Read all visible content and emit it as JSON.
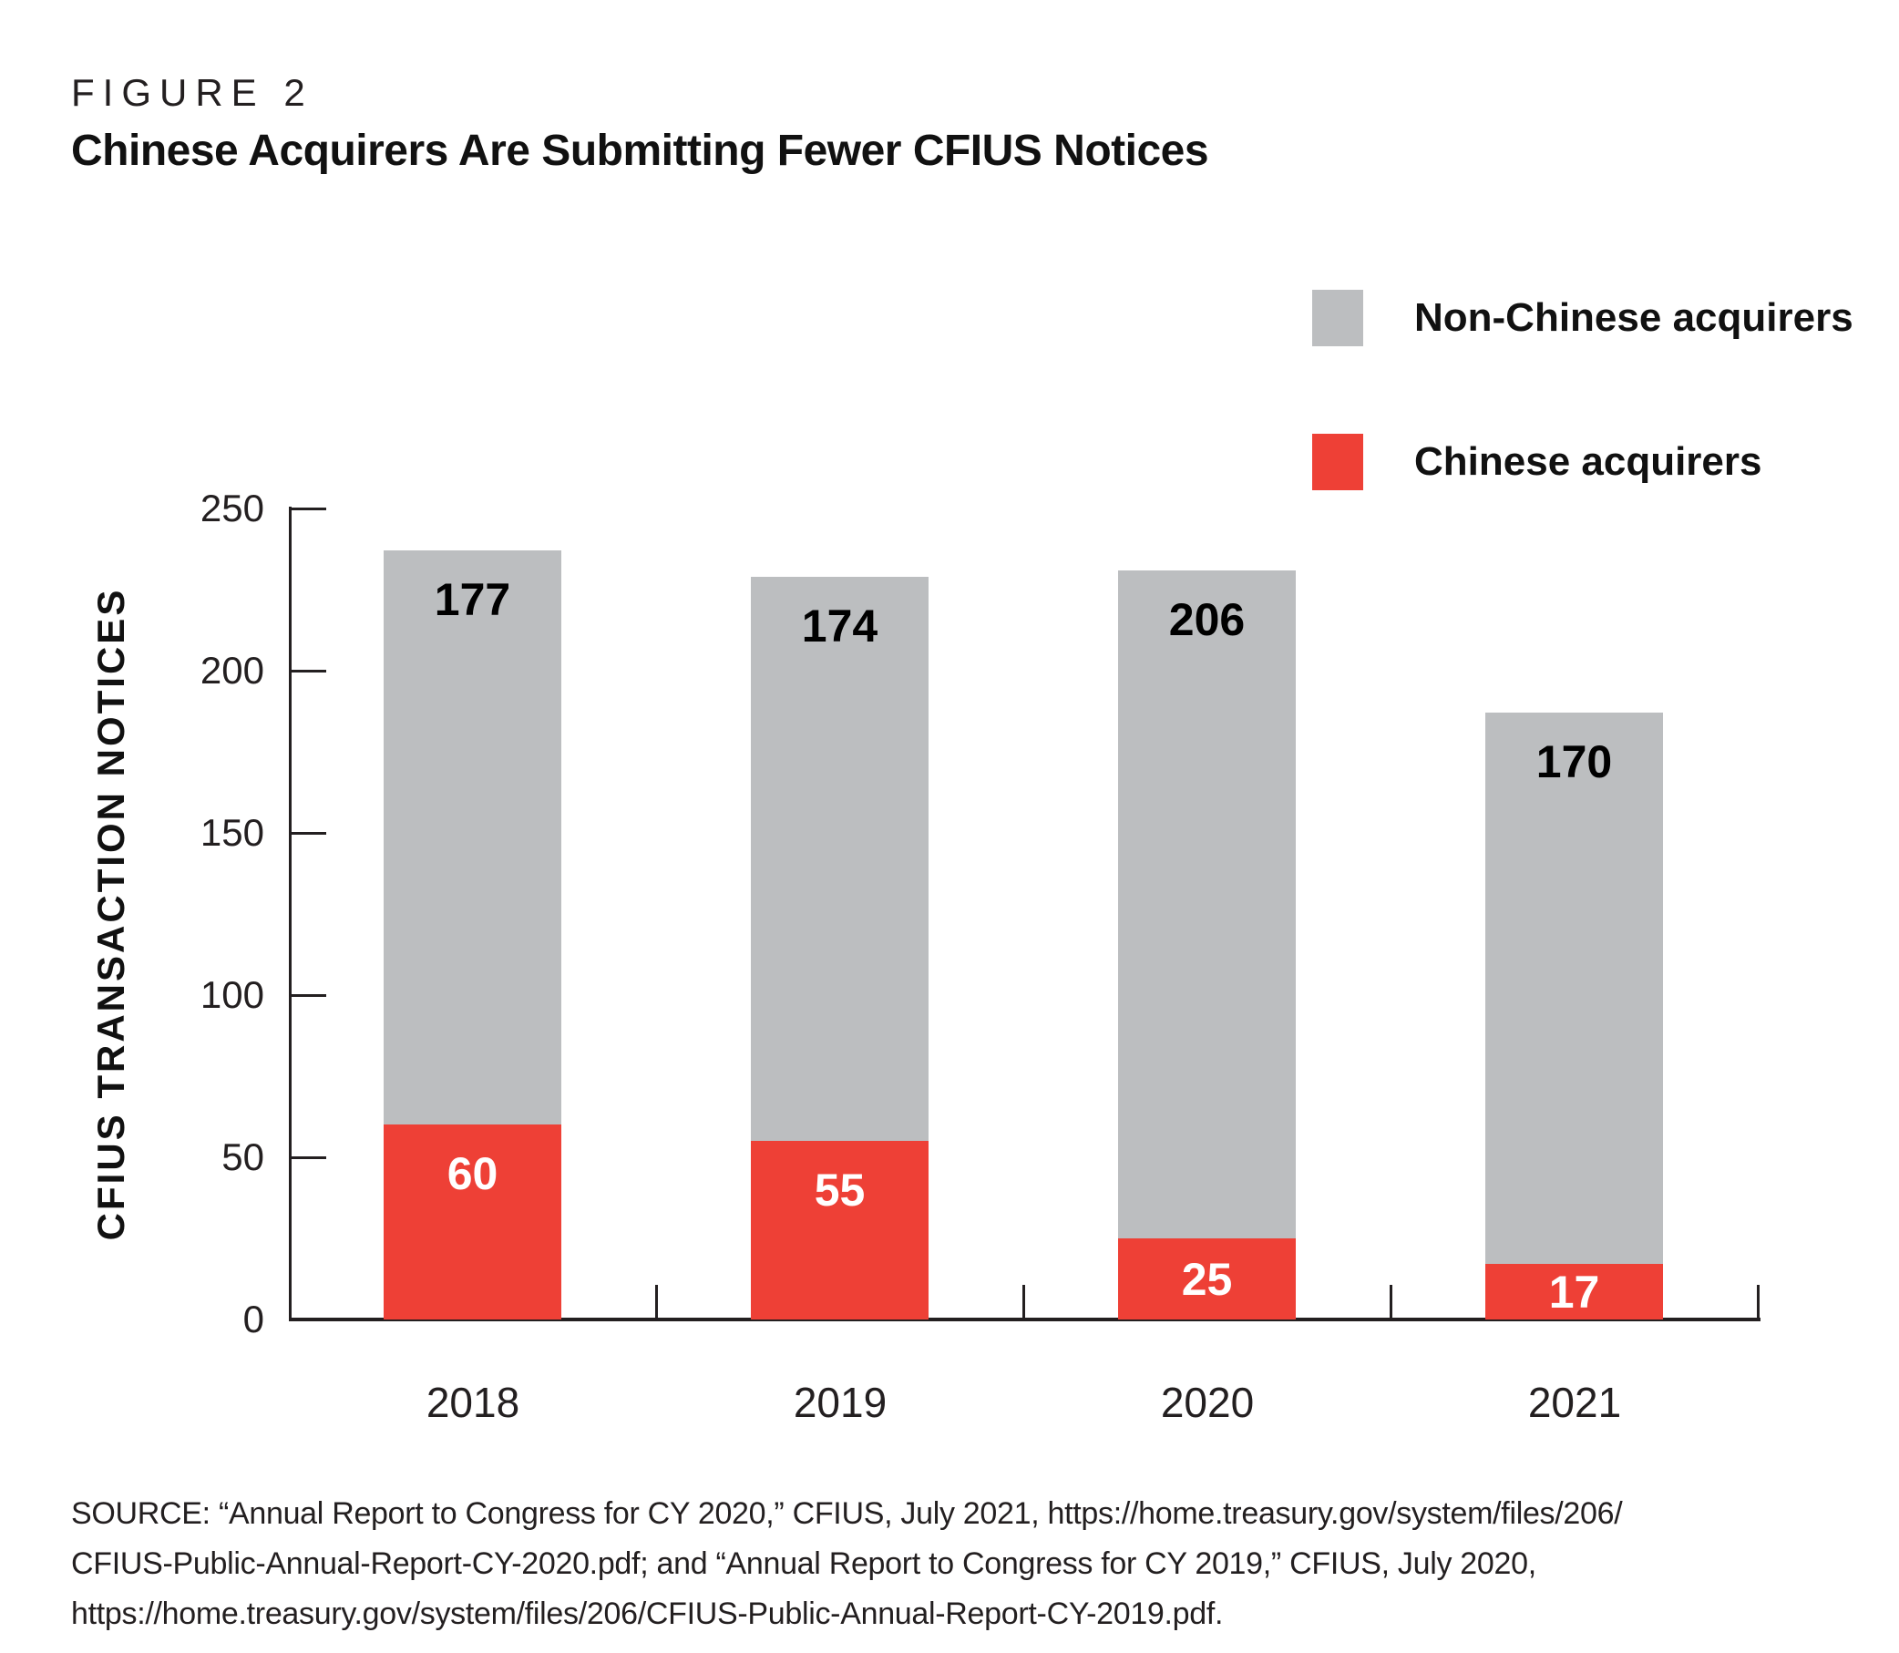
{
  "figure": {
    "label": "FIGURE 2",
    "title": "Chinese Acquirers Are Submitting Fewer CFIUS Notices"
  },
  "legend": {
    "items": [
      {
        "label": "Non-Chinese acquirers",
        "color": "#bcbec0"
      },
      {
        "label": "Chinese acquirers",
        "color": "#ee4036"
      }
    ]
  },
  "chart_data": {
    "type": "bar",
    "stacked": true,
    "title": "Chinese Acquirers Are Submitting Fewer CFIUS Notices",
    "categories": [
      "2018",
      "2019",
      "2020",
      "2021"
    ],
    "series": [
      {
        "name": "Chinese acquirers",
        "color": "#ee4036",
        "label_color": "#ffffff",
        "values": [
          60,
          55,
          25,
          17
        ]
      },
      {
        "name": "Non-Chinese acquirers",
        "color": "#bcbec0",
        "label_color": "#000000",
        "values": [
          177,
          174,
          206,
          170
        ]
      }
    ],
    "xlabel": "",
    "ylabel": "CFIUS TRANSACTION NOTICES",
    "ylim": [
      0,
      250
    ],
    "yticks": [
      0,
      50,
      100,
      150,
      200,
      250
    ],
    "grid": false,
    "legend_position": "top-right",
    "axis_color": "#231f20"
  },
  "source": {
    "lines": [
      "SOURCE: “Annual Report to Congress for CY 2020,” CFIUS, July 2021, https://home.treasury.gov/system/files/206/",
      "CFIUS-Public-Annual-Report-CY-2020.pdf; and “Annual Report to Congress for CY 2019,” CFIUS, July 2020,",
      "https://home.treasury.gov/system/files/206/CFIUS-Public-Annual-Report-CY-2019.pdf."
    ]
  }
}
